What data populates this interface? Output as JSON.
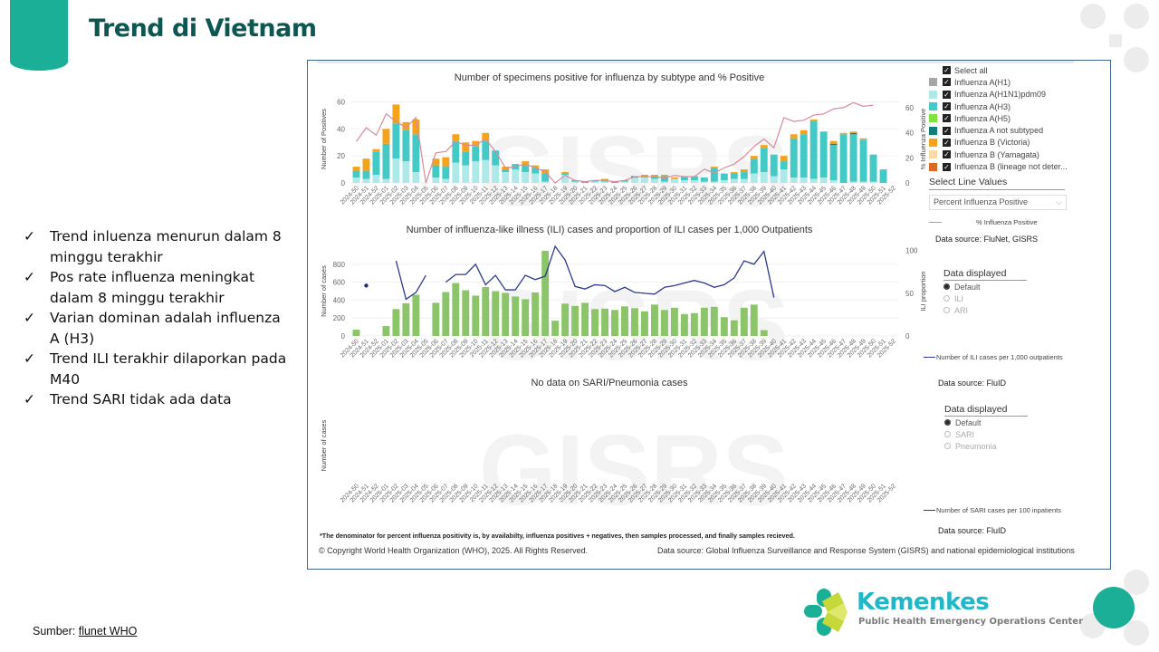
{
  "page": {
    "title": "Trend di Vietnam",
    "bullets": [
      "Trend inluenza menurun dalam 8 minggu terakhir",
      "Pos rate influenza meningkat dalam 8 minggu terakhir",
      "Varian dominan adalah influenza A (H3)",
      "Trend ILI terakhir dilaporkan pada M40",
      "Trend SARI tidak ada data"
    ],
    "bullet_icon": "check-icon",
    "source_label": "Sumber:",
    "source_link": "flunet WHO"
  },
  "branding": {
    "name": "Kemenkes",
    "subtitle": "Public Health Emergency Operations Center",
    "accent": "#1aaf96",
    "title_color": "#0d5651"
  },
  "legend": {
    "select_all": "Select all",
    "items": [
      {
        "label": "Influenza A(H1)",
        "color": "#a6a6a6"
      },
      {
        "label": "Influenza A(H1N1)pdm09",
        "color": "#aee9ea"
      },
      {
        "label": "Influenza A(H3)",
        "color": "#43c9c6"
      },
      {
        "label": "Influenza A(H5)",
        "color": "#7ee33a"
      },
      {
        "label": "Influenza A not subtyped",
        "color": "#0e7f79"
      },
      {
        "label": "Influenza B (Victoria)",
        "color": "#f5a31a"
      },
      {
        "label": "Influenza B (Yamagata)",
        "color": "#fbd9a8"
      },
      {
        "label": "Influenza B (lineage not deter...",
        "color": "#dc6a24"
      }
    ],
    "select_line_label": "Select Line Values",
    "select_line_value": "Percent Influenza Positive",
    "line_legend": "% Influenza Positive",
    "data_source_1": "Data source: FluNet, GISRS",
    "ili_radio_title": "Data displayed",
    "ili_radio_options": [
      "Default",
      "ILI",
      "ARI"
    ],
    "ili_line_legend": "Number of ILI cases per 1,000 outpatients",
    "data_source_2": "Data source: FluID",
    "sari_radio_title": "Data displayed",
    "sari_radio_options": [
      "Default",
      "SARI",
      "Pneumonia"
    ],
    "sari_line_legend": "Number of SARI cases per 100 inpatients",
    "data_source_3": "Data source: FluID"
  },
  "footer": {
    "note": "*The denominator for percent influenza positivity is, by availabilty, influenza positives + negatives, then samples processed, and finally samples recieved.",
    "copyright": "© Copyright World Health Organization (WHO), 2025. All Rights Reserved.",
    "data_source": "Data source: Global Influenza Surveillance and Response System (GISRS) and national epidemiological institutions"
  },
  "chart_data": [
    {
      "type": "bar",
      "stacked": true,
      "title": "Number of specimens positive for influenza by subtype and % Positive",
      "xlabel": "",
      "ylabel": "Number of Positives",
      "y2label": "% Influenza Positive",
      "ylim": [
        0,
        65
      ],
      "y2lim": [
        0,
        70
      ],
      "yticks": [
        0,
        20,
        40,
        60
      ],
      "y2ticks": [
        0,
        20,
        40,
        60
      ],
      "categories": [
        "2024-50",
        "2024-51",
        "2024-52",
        "2025-01",
        "2025-02",
        "2025-03",
        "2025-04",
        "2025-05",
        "2025-06",
        "2025-07",
        "2025-08",
        "2025-09",
        "2025-10",
        "2025-11",
        "2025-12",
        "2025-13",
        "2025-14",
        "2025-15",
        "2025-16",
        "2025-17",
        "2025-18",
        "2025-19",
        "2025-20",
        "2025-21",
        "2025-22",
        "2025-23",
        "2025-24",
        "2025-25",
        "2025-26",
        "2025-27",
        "2025-28",
        "2025-29",
        "2025-30",
        "2025-31",
        "2025-32",
        "2025-33",
        "2025-34",
        "2025-35",
        "2025-36",
        "2025-37",
        "2025-38",
        "2025-39",
        "2025-40",
        "2025-41",
        "2025-42",
        "2025-43",
        "2025-44",
        "2025-45",
        "2025-46",
        "2025-47",
        "2025-48",
        "2025-49",
        "2025-50",
        "2025-51",
        "2025-52"
      ],
      "series": [
        {
          "name": "Influenza A(H1N1)pdm09",
          "values": [
            4,
            3,
            6,
            3,
            18,
            16,
            8,
            0,
            4,
            3,
            15,
            13,
            16,
            17,
            13,
            8,
            10,
            8,
            7,
            1,
            0,
            6,
            1,
            0,
            1,
            1,
            0,
            1,
            4,
            4,
            3,
            1,
            3,
            2,
            2,
            1,
            1,
            2,
            3,
            3,
            7,
            8,
            5,
            10,
            4,
            4,
            3,
            4,
            2,
            0,
            1,
            1,
            1,
            0,
            0
          ]
        },
        {
          "name": "Influenza A(H3)",
          "values": [
            5,
            6,
            17,
            26,
            26,
            23,
            28,
            0,
            9,
            9,
            16,
            10,
            11,
            14,
            11,
            2,
            4,
            5,
            4,
            6,
            0,
            1,
            1,
            1,
            1,
            1,
            1,
            1,
            0,
            1,
            2,
            4,
            0,
            2,
            3,
            3,
            10,
            5,
            4,
            5,
            11,
            18,
            16,
            6,
            29,
            32,
            43,
            34,
            26,
            36,
            35,
            31,
            20,
            10,
            0
          ]
        },
        {
          "name": "Influenza A not subtyped",
          "values": [
            0,
            0,
            0,
            0,
            0,
            0,
            0,
            0,
            0,
            0,
            0,
            0,
            0,
            0,
            0,
            0,
            0,
            0,
            0,
            0,
            0,
            0,
            0,
            0,
            0,
            0,
            0,
            0,
            1,
            0,
            0,
            0,
            0,
            0,
            0,
            0,
            0,
            0,
            0,
            0,
            0,
            0,
            0,
            0,
            0,
            0,
            0,
            0,
            1,
            0,
            1,
            0,
            0,
            0,
            0
          ]
        },
        {
          "name": "Influenza B (Victoria)",
          "values": [
            3,
            9,
            2,
            11,
            14,
            6,
            11,
            0,
            5,
            7,
            5,
            7,
            4,
            6,
            0,
            2,
            0,
            3,
            2,
            3,
            0,
            1,
            0,
            0,
            0,
            1,
            0,
            0,
            0,
            1,
            1,
            1,
            1,
            1,
            0,
            0,
            1,
            0,
            1,
            2,
            2,
            2,
            0,
            4,
            3,
            3,
            1,
            0,
            2,
            1,
            1,
            1,
            0,
            0,
            0
          ]
        }
      ],
      "line": {
        "name": "% Influenza Positive",
        "values": [
          33,
          44,
          38,
          55,
          49,
          44,
          52,
          0,
          24,
          25,
          33,
          30,
          30,
          35,
          25,
          12,
          13,
          15,
          12,
          9,
          0,
          6,
          2,
          1,
          2,
          2,
          1,
          2,
          5,
          5,
          5,
          4,
          6,
          5,
          5,
          11,
          8,
          12,
          15,
          21,
          29,
          35,
          28,
          52,
          49,
          50,
          54,
          55,
          59,
          60,
          64,
          61,
          62,
          null,
          null
        ]
      }
    },
    {
      "type": "bar",
      "title": "Number of influenza-like illness (ILI) cases and proportion of ILI cases per 1,000 Outpatients",
      "xlabel": "",
      "ylabel": "Number of cases",
      "y2label": "ILI proportion",
      "ylim": [
        0,
        1000
      ],
      "y2lim": [
        0,
        105
      ],
      "yticks": [
        0,
        200,
        400,
        600,
        800
      ],
      "y2ticks": [
        0,
        50,
        100
      ],
      "categories": [
        "2024-50",
        "2024-51",
        "2024-52",
        "2025-01",
        "2025-02",
        "2025-03",
        "2025-04",
        "2025-05",
        "2025-06",
        "2025-07",
        "2025-08",
        "2025-09",
        "2025-10",
        "2025-11",
        "2025-12",
        "2025-13",
        "2025-14",
        "2025-15",
        "2025-16",
        "2025-17",
        "2025-18",
        "2025-19",
        "2025-20",
        "2025-21",
        "2025-22",
        "2025-23",
        "2025-24",
        "2025-25",
        "2025-26",
        "2025-27",
        "2025-28",
        "2025-29",
        "2025-30",
        "2025-31",
        "2025-32",
        "2025-33",
        "2025-34",
        "2025-35",
        "2025-36",
        "2025-37",
        "2025-38",
        "2025-39",
        "2025-40",
        "2025-41",
        "2025-42",
        "2025-43",
        "2025-44",
        "2025-45",
        "2025-46",
        "2025-47",
        "2025-48",
        "2025-49",
        "2025-50",
        "2025-51",
        "2025-52"
      ],
      "series": [
        {
          "name": "Number of ILI cases",
          "values": [
            70,
            null,
            null,
            110,
            300,
            365,
            460,
            null,
            370,
            490,
            590,
            510,
            450,
            545,
            500,
            480,
            440,
            410,
            485,
            950,
            170,
            360,
            335,
            370,
            300,
            305,
            290,
            330,
            310,
            275,
            350,
            290,
            315,
            245,
            255,
            315,
            325,
            210,
            175,
            315,
            350,
            65,
            null,
            null,
            null,
            null,
            null,
            null,
            null,
            null,
            null,
            null,
            null,
            null,
            null
          ]
        }
      ],
      "line": {
        "name": "Number of ILI cases per 1,000 outpatients",
        "values": [
          null,
          59,
          null,
          null,
          88,
          43,
          51,
          71,
          null,
          63,
          72,
          72,
          84,
          60,
          71,
          54,
          54,
          71,
          66,
          70,
          105,
          89,
          58,
          55,
          60,
          59,
          52,
          57,
          51,
          50,
          49,
          57,
          59,
          62,
          65,
          62,
          57,
          60,
          68,
          88,
          84,
          99,
          45,
          null,
          null,
          null,
          null,
          null,
          null,
          null,
          null,
          null,
          null,
          null,
          null
        ]
      }
    },
    {
      "type": "bar",
      "title": "No data on SARI/Pneumonia cases",
      "xlabel": "",
      "ylabel": "Number of cases",
      "categories": [
        "2024-50",
        "2024-51",
        "2024-52",
        "2025-01",
        "2025-02",
        "2025-03",
        "2025-04",
        "2025-05",
        "2025-06",
        "2025-07",
        "2025-08",
        "2025-09",
        "2025-10",
        "2025-11",
        "2025-12",
        "2025-13",
        "2025-14",
        "2025-15",
        "2025-16",
        "2025-17",
        "2025-18",
        "2025-19",
        "2025-20",
        "2025-21",
        "2025-22",
        "2025-23",
        "2025-24",
        "2025-25",
        "2025-26",
        "2025-27",
        "2025-28",
        "2025-29",
        "2025-30",
        "2025-31",
        "2025-32",
        "2025-33",
        "2025-34",
        "2025-35",
        "2025-36",
        "2025-37",
        "2025-38",
        "2025-39",
        "2025-40",
        "2025-41",
        "2025-42",
        "2025-43",
        "2025-44",
        "2025-45",
        "2025-46",
        "2025-47",
        "2025-48",
        "2025-49",
        "2025-50",
        "2025-51",
        "2025-52"
      ],
      "series": []
    }
  ]
}
